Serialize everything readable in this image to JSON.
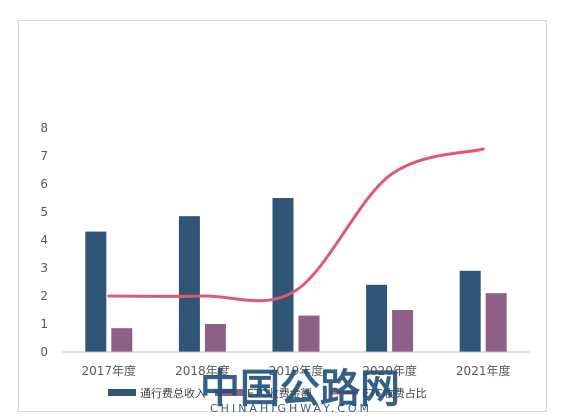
{
  "chart_data": {
    "type": "bar",
    "categories": [
      "2017年度",
      "2018年度",
      "2019年度",
      "2020年度",
      "2021年度"
    ],
    "series": [
      {
        "name": "通行费总收入",
        "kind": "bar",
        "color": "#2f5577",
        "values": [
          4.3,
          4.85,
          5.5,
          2.4,
          2.9
        ]
      },
      {
        "name": "ETC收费金额",
        "kind": "bar",
        "color": "#8e6085",
        "values": [
          0.85,
          1.0,
          1.3,
          1.5,
          2.1
        ]
      },
      {
        "name": "ETC收费占比",
        "kind": "line",
        "color": "#e05a6e",
        "values": [
          2.0,
          2.0,
          2.2,
          6.3,
          7.25
        ]
      }
    ],
    "yticks": [
      "0",
      "1",
      "2",
      "3",
      "4",
      "5",
      "6",
      "7",
      "8"
    ],
    "ylim": [
      0,
      8
    ],
    "grid": false,
    "legend_position": "bottom"
  },
  "watermark": {
    "title": "中国公路网",
    "subtitle": "CHINAHIGHWAY.COM"
  }
}
